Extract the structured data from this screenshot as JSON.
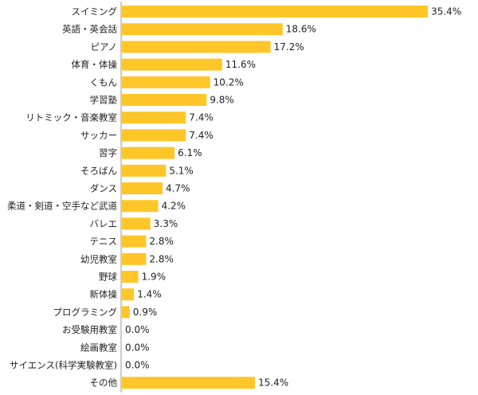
{
  "chart_data": {
    "type": "bar",
    "orientation": "horizontal",
    "categories": [
      "スイミング",
      "英語・英会話",
      "ピアノ",
      "体育・体操",
      "くもん",
      "学習塾",
      "リトミック・音楽教室",
      "サッカー",
      "習字",
      "そろばん",
      "ダンス",
      "柔道・剣道・空手など武道",
      "バレエ",
      "テニス",
      "幼児教室",
      "野球",
      "新体操",
      "プログラミング",
      "お受験用教室",
      "絵画教室",
      "サイエンス(科学実験教室)",
      "その他"
    ],
    "values": [
      35.4,
      18.6,
      17.2,
      11.6,
      10.2,
      9.8,
      7.4,
      7.4,
      6.1,
      5.1,
      4.7,
      4.2,
      3.3,
      2.8,
      2.8,
      1.9,
      1.4,
      0.9,
      0.0,
      0.0,
      0.0,
      15.4
    ],
    "value_labels": [
      "35.4%",
      "18.6%",
      "17.2%",
      "11.6%",
      "10.2%",
      "9.8%",
      "7.4%",
      "7.4%",
      "6.1%",
      "5.1%",
      "4.7%",
      "4.2%",
      "3.3%",
      "2.8%",
      "2.8%",
      "1.9%",
      "1.4%",
      "0.9%",
      "0.0%",
      "0.0%",
      "0.0%",
      "15.4%"
    ],
    "xlim": [
      0,
      40
    ],
    "bar_color": "#FFC629",
    "axis_color": "#999999",
    "grid": false,
    "legend": "none"
  }
}
